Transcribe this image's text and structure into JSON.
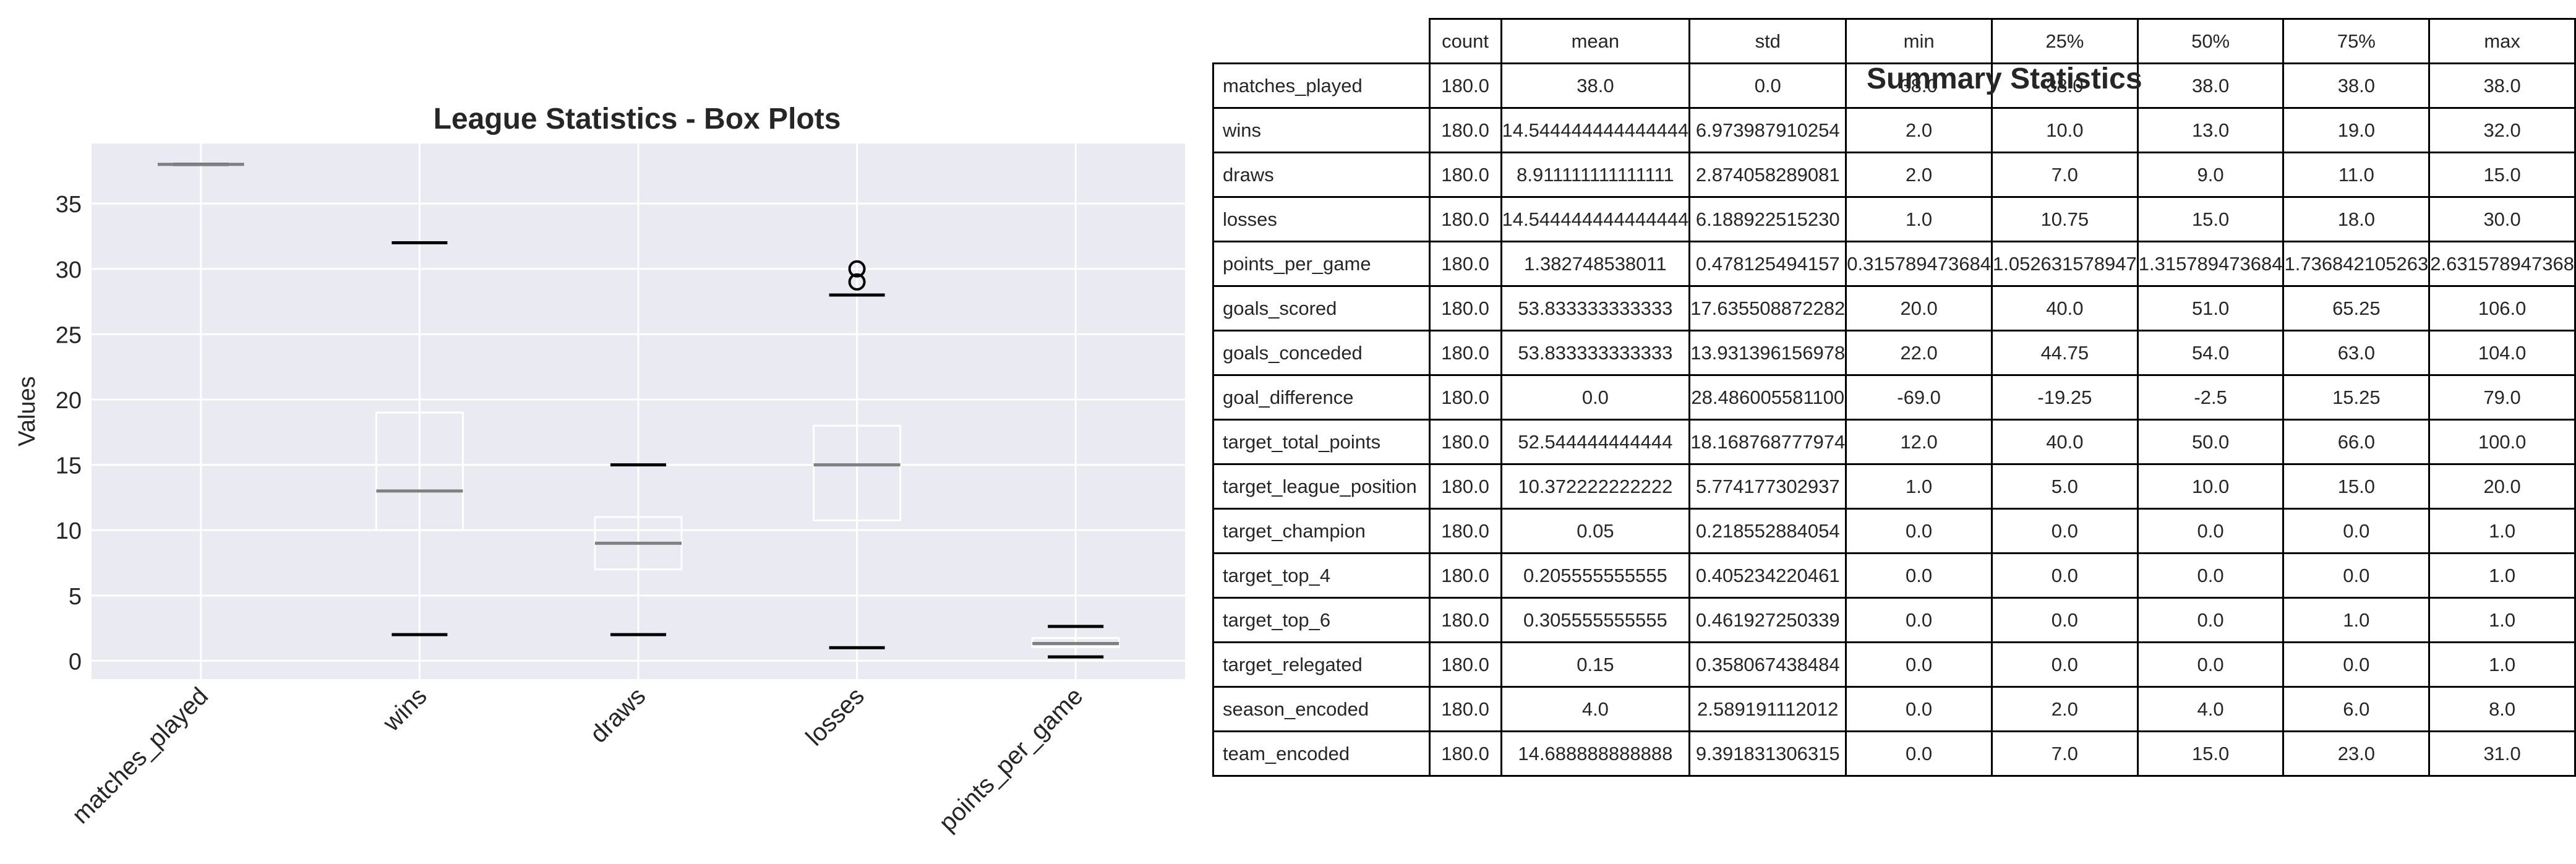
{
  "chart_data": [
    {
      "type": "box",
      "title": "League Statistics - Box Plots",
      "xlabel": "",
      "ylabel": "Values",
      "ylim": [
        -1.4,
        39.6
      ],
      "yticks": [
        0,
        5,
        10,
        15,
        20,
        25,
        30,
        35
      ],
      "grid": true,
      "categories": [
        "matches_played",
        "wins",
        "draws",
        "losses",
        "points_per_game"
      ],
      "boxes": [
        {
          "label": "matches_played",
          "whislo": 38.0,
          "q1": 38.0,
          "med": 38.0,
          "q3": 38.0,
          "whishi": 38.0,
          "fliers": []
        },
        {
          "label": "wins",
          "whislo": 2.0,
          "q1": 10.0,
          "med": 13.0,
          "q3": 19.0,
          "whishi": 32.0,
          "fliers": []
        },
        {
          "label": "draws",
          "whislo": 2.0,
          "q1": 7.0,
          "med": 9.0,
          "q3": 11.0,
          "whishi": 15.0,
          "fliers": []
        },
        {
          "label": "losses",
          "whislo": 1.0,
          "q1": 10.75,
          "med": 15.0,
          "q3": 18.0,
          "whishi": 28.0,
          "fliers": [
            29.0,
            30.0
          ]
        },
        {
          "label": "points_per_game",
          "whislo": 0.3,
          "q1": 1.05,
          "med": 1.32,
          "q3": 1.74,
          "whishi": 2.63,
          "fliers": []
        }
      ],
      "colors": {
        "background": "#eaeaf2",
        "grid": "#ffffff",
        "median": "#808080",
        "whisker": "#000000",
        "box": "#ffffff"
      }
    },
    {
      "type": "table",
      "title": "Summary Statistics",
      "columns": [
        "count",
        "mean",
        "std",
        "min",
        "25%",
        "50%",
        "75%",
        "max"
      ],
      "rows": [
        {
          "label": "matches_played",
          "values": [
            "180.0",
            "38.0",
            "0.0",
            "38.0",
            "38.0",
            "38.0",
            "38.0",
            "38.0"
          ]
        },
        {
          "label": "wins",
          "values": [
            "180.0",
            "14.544444444444444",
            "6.973987910254",
            "2.0",
            "10.0",
            "13.0",
            "19.0",
            "32.0"
          ]
        },
        {
          "label": "draws",
          "values": [
            "180.0",
            "8.911111111111111",
            "2.874058289081",
            "2.0",
            "7.0",
            "9.0",
            "11.0",
            "15.0"
          ]
        },
        {
          "label": "losses",
          "values": [
            "180.0",
            "14.544444444444444",
            "6.188922515230",
            "1.0",
            "10.75",
            "15.0",
            "18.0",
            "30.0"
          ]
        },
        {
          "label": "points_per_game",
          "values": [
            "180.0",
            "1.382748538011",
            "0.478125494157",
            "0.315789473684",
            "1.052631578947",
            "1.315789473684",
            "1.736842105263",
            "2.631578947368"
          ]
        },
        {
          "label": "goals_scored",
          "values": [
            "180.0",
            "53.833333333333",
            "17.635508872282",
            "20.0",
            "40.0",
            "51.0",
            "65.25",
            "106.0"
          ]
        },
        {
          "label": "goals_conceded",
          "values": [
            "180.0",
            "53.833333333333",
            "13.931396156978",
            "22.0",
            "44.75",
            "54.0",
            "63.0",
            "104.0"
          ]
        },
        {
          "label": "goal_difference",
          "values": [
            "180.0",
            "0.0",
            "28.486005581100",
            "-69.0",
            "-19.25",
            "-2.5",
            "15.25",
            "79.0"
          ]
        },
        {
          "label": "target_total_points",
          "values": [
            "180.0",
            "52.544444444444",
            "18.168768777974",
            "12.0",
            "40.0",
            "50.0",
            "66.0",
            "100.0"
          ]
        },
        {
          "label": "target_league_position",
          "values": [
            "180.0",
            "10.372222222222",
            "5.774177302937",
            "1.0",
            "5.0",
            "10.0",
            "15.0",
            "20.0"
          ]
        },
        {
          "label": "target_champion",
          "values": [
            "180.0",
            "0.05",
            "0.218552884054",
            "0.0",
            "0.0",
            "0.0",
            "0.0",
            "1.0"
          ]
        },
        {
          "label": "target_top_4",
          "values": [
            "180.0",
            "0.205555555555",
            "0.405234220461",
            "0.0",
            "0.0",
            "0.0",
            "0.0",
            "1.0"
          ]
        },
        {
          "label": "target_top_6",
          "values": [
            "180.0",
            "0.305555555555",
            "0.461927250339",
            "0.0",
            "0.0",
            "0.0",
            "1.0",
            "1.0"
          ]
        },
        {
          "label": "target_relegated",
          "values": [
            "180.0",
            "0.15",
            "0.358067438484",
            "0.0",
            "0.0",
            "0.0",
            "0.0",
            "1.0"
          ]
        },
        {
          "label": "season_encoded",
          "values": [
            "180.0",
            "4.0",
            "2.589191112012",
            "0.0",
            "2.0",
            "4.0",
            "6.0",
            "8.0"
          ]
        },
        {
          "label": "team_encoded",
          "values": [
            "180.0",
            "14.688888888888",
            "9.391831306315",
            "0.0",
            "7.0",
            "15.0",
            "23.0",
            "31.0"
          ]
        }
      ]
    }
  ]
}
